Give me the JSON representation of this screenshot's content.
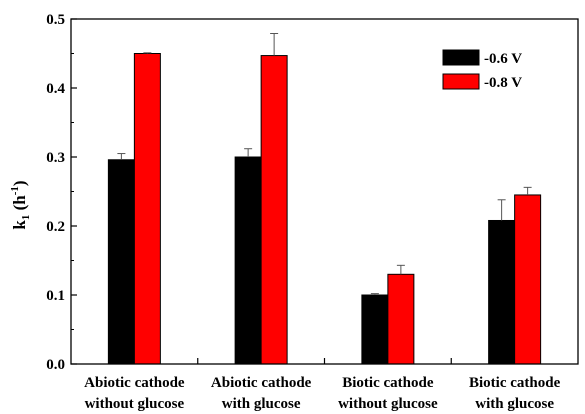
{
  "chart_data": {
    "type": "bar",
    "categories": [
      [
        "Abiotic  cathode",
        "without glucose"
      ],
      [
        "Abiotic cathode",
        "with glucose"
      ],
      [
        "Biotic cathode",
        "without glucose"
      ],
      [
        "Biotic cathode",
        "with glucose"
      ]
    ],
    "series": [
      {
        "name": "-0.6 V",
        "color": "#000000",
        "values": [
          0.296,
          0.3,
          0.1,
          0.208
        ],
        "errors": [
          0.009,
          0.012,
          0.002,
          0.03
        ]
      },
      {
        "name": "-0.8 V",
        "color": "#ff0000",
        "values": [
          0.45,
          0.447,
          0.13,
          0.245
        ],
        "errors": [
          0.001,
          0.032,
          0.013,
          0.011
        ]
      }
    ],
    "ylabel": {
      "main": "k",
      "sub": "1",
      "unit_open": " (h",
      "sup": "-1",
      "unit_close": ")"
    },
    "ylim": [
      0,
      0.5
    ],
    "yticks": [
      "0.0",
      "0.1",
      "0.2",
      "0.3",
      "0.4",
      "0.5"
    ],
    "ytick_values": [
      0,
      0.1,
      0.2,
      0.3,
      0.4,
      0.5
    ],
    "legend_position": "top-right",
    "grid": false
  }
}
